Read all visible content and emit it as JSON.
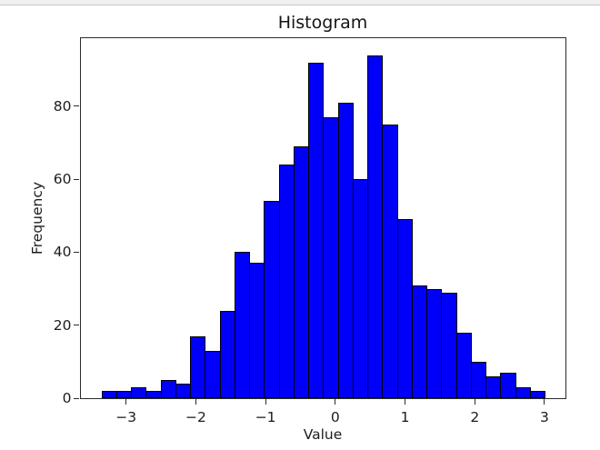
{
  "chart_data": {
    "type": "histogram",
    "title": "Histogram",
    "xlabel": "Value",
    "ylabel": "Frequency",
    "bar_color": "#0000fa",
    "bar_edge_color": "#000000",
    "bin_start": -3.3528,
    "bin_width": 0.21187,
    "counts": [
      2,
      2,
      3,
      2,
      5,
      4,
      17,
      13,
      24,
      40,
      37,
      54,
      64,
      69,
      92,
      77,
      81,
      60,
      94,
      75,
      49,
      31,
      30,
      29,
      18,
      10,
      6,
      7,
      3,
      2
    ],
    "total_samples": 1000,
    "x_ticks": [
      {
        "value": -3,
        "label": "−3"
      },
      {
        "value": -2,
        "label": "−2"
      },
      {
        "value": -1,
        "label": "−1"
      },
      {
        "value": 0,
        "label": "0"
      },
      {
        "value": 1,
        "label": "1"
      },
      {
        "value": 2,
        "label": "2"
      },
      {
        "value": 3,
        "label": "3"
      }
    ],
    "y_ticks": [
      {
        "value": 0,
        "label": "0"
      },
      {
        "value": 20,
        "label": "20"
      },
      {
        "value": 40,
        "label": "40"
      },
      {
        "value": 60,
        "label": "60"
      },
      {
        "value": 80,
        "label": "80"
      }
    ],
    "xlim": [
      -3.655,
      3.294
    ],
    "ylim": [
      0,
      98.75
    ],
    "grid": false,
    "legend": null
  }
}
